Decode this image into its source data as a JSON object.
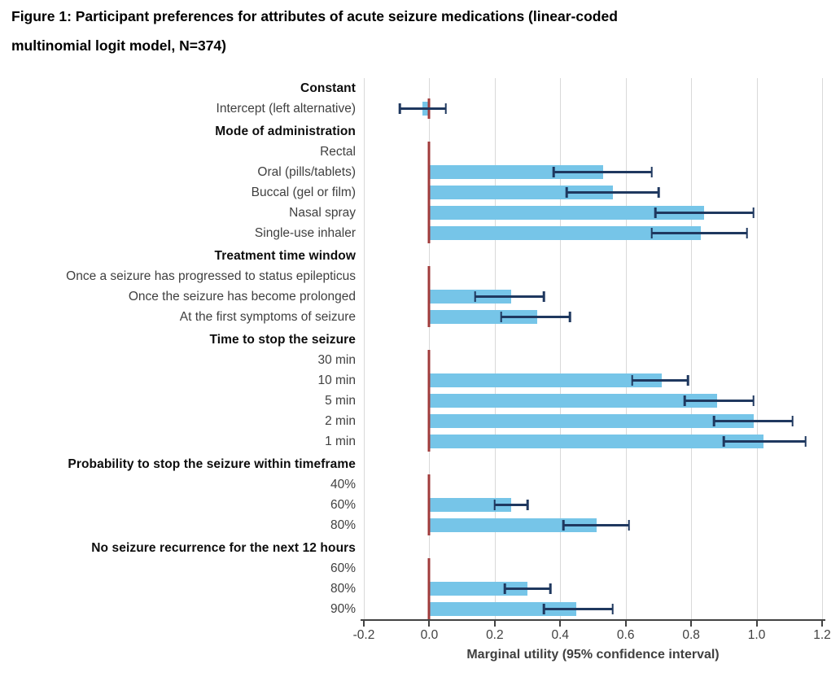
{
  "figure_title": {
    "line1": "Figure 1: Participant preferences for attributes of acute seizure medications (linear-coded",
    "line2": "multinomial logit model, N=374)"
  },
  "chart_data": {
    "type": "bar",
    "orientation": "horizontal",
    "title": "Figure 1: Participant preferences for attributes of acute seizure medications (linear-coded multinomial logit model, N=374)",
    "xlabel": "Marginal utility (95% confidence interval)",
    "xlim": [
      -0.2,
      1.2
    ],
    "xticks": [
      "-0.2",
      "0.0",
      "0.2",
      "0.4",
      "0.6",
      "0.8",
      "1.0",
      "1.2"
    ],
    "grid": true,
    "bar_color": "#76c5e8",
    "error_bar_color": "#1f385f",
    "zero_line_color": "#a03b3b",
    "gridline_color": "#d9d9d9",
    "groups": [
      {
        "header": "Constant",
        "items": [
          {
            "label": "Intercept (left alternative)",
            "value": -0.02,
            "ci": [
              -0.09,
              0.05
            ],
            "reference": false
          }
        ]
      },
      {
        "header": "Mode of administration",
        "items": [
          {
            "label": "Rectal",
            "value": 0,
            "ci": null,
            "reference": true
          },
          {
            "label": "Oral (pills/tablets)",
            "value": 0.53,
            "ci": [
              0.38,
              0.68
            ],
            "reference": false
          },
          {
            "label": "Buccal (gel or film)",
            "value": 0.56,
            "ci": [
              0.42,
              0.7
            ],
            "reference": false
          },
          {
            "label": "Nasal spray",
            "value": 0.84,
            "ci": [
              0.69,
              0.99
            ],
            "reference": false
          },
          {
            "label": "Single-use inhaler",
            "value": 0.83,
            "ci": [
              0.68,
              0.97
            ],
            "reference": false
          }
        ]
      },
      {
        "header": "Treatment time window",
        "items": [
          {
            "label": "Once a seizure has progressed to status epilepticus",
            "value": 0,
            "ci": null,
            "reference": true
          },
          {
            "label": "Once the seizure has become prolonged",
            "value": 0.25,
            "ci": [
              0.14,
              0.35
            ],
            "reference": false
          },
          {
            "label": "At the first symptoms of seizure",
            "value": 0.33,
            "ci": [
              0.22,
              0.43
            ],
            "reference": false
          }
        ]
      },
      {
        "header": "Time to stop the seizure",
        "items": [
          {
            "label": "30 min",
            "value": 0,
            "ci": null,
            "reference": true
          },
          {
            "label": "10 min",
            "value": 0.71,
            "ci": [
              0.62,
              0.79
            ],
            "reference": false
          },
          {
            "label": "5 min",
            "value": 0.88,
            "ci": [
              0.78,
              0.99
            ],
            "reference": false
          },
          {
            "label": "2 min",
            "value": 0.99,
            "ci": [
              0.87,
              1.11
            ],
            "reference": false
          },
          {
            "label": "1 min",
            "value": 1.02,
            "ci": [
              0.9,
              1.15
            ],
            "reference": false
          }
        ]
      },
      {
        "header": "Probability to stop the seizure within timeframe",
        "items": [
          {
            "label": "40%",
            "value": 0,
            "ci": null,
            "reference": true
          },
          {
            "label": "60%",
            "value": 0.25,
            "ci": [
              0.2,
              0.3
            ],
            "reference": false
          },
          {
            "label": "80%",
            "value": 0.51,
            "ci": [
              0.41,
              0.61
            ],
            "reference": false
          }
        ]
      },
      {
        "header": "No seizure recurrence for the next 12 hours",
        "items": [
          {
            "label": "60%",
            "value": 0,
            "ci": null,
            "reference": true
          },
          {
            "label": "80%",
            "value": 0.3,
            "ci": [
              0.23,
              0.37
            ],
            "reference": false
          },
          {
            "label": "90%",
            "value": 0.45,
            "ci": [
              0.35,
              0.56
            ],
            "reference": false
          }
        ]
      }
    ]
  }
}
